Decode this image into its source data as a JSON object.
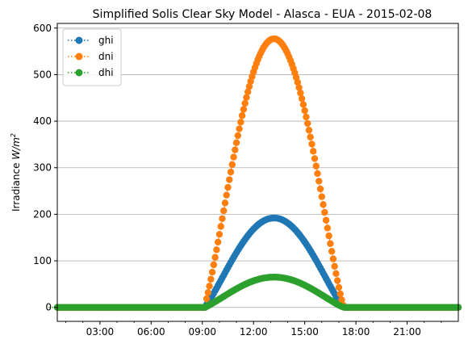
{
  "chart_data": {
    "type": "scatter",
    "title": "Simplified Solis Clear Sky Model - Alasca - EUA - 2015-02-08",
    "xlabel": "",
    "ylabel_prefix": "Irradiance ",
    "ylabel_math": "W/m",
    "ylabel_sup": "2",
    "x_unit": "hours",
    "xlim": [
      0.5,
      24.0
    ],
    "ylim": [
      -30,
      610
    ],
    "x_ticks": [
      3,
      6,
      9,
      12,
      15,
      18,
      21
    ],
    "x_tick_labels": [
      "03:00",
      "06:00",
      "09:00",
      "12:00",
      "15:00",
      "18:00",
      "21:00"
    ],
    "y_ticks": [
      0,
      100,
      200,
      300,
      400,
      500,
      600
    ],
    "y_tick_labels": [
      "0",
      "100",
      "200",
      "300",
      "400",
      "500",
      "600"
    ],
    "grid": "horizontal",
    "legend_position": "top-left",
    "sample_interval_minutes": 5,
    "series": [
      {
        "name": "ghi",
        "color": "#1f77b4",
        "marker": "circle",
        "line": "dotted",
        "sunrise": 9.2,
        "sunset": 17.3,
        "peak_time": 13.2,
        "peak": 192
      },
      {
        "name": "dni",
        "color": "#ff7f0e",
        "marker": "circle",
        "line": "dotted",
        "sunrise": 9.2,
        "sunset": 17.3,
        "peak_time": 13.2,
        "peak": 577
      },
      {
        "name": "dhi",
        "color": "#2ca02c",
        "marker": "circle",
        "line": "dotted",
        "sunrise": 9.2,
        "sunset": 17.3,
        "peak_time": 13.2,
        "peak": 65
      }
    ]
  }
}
